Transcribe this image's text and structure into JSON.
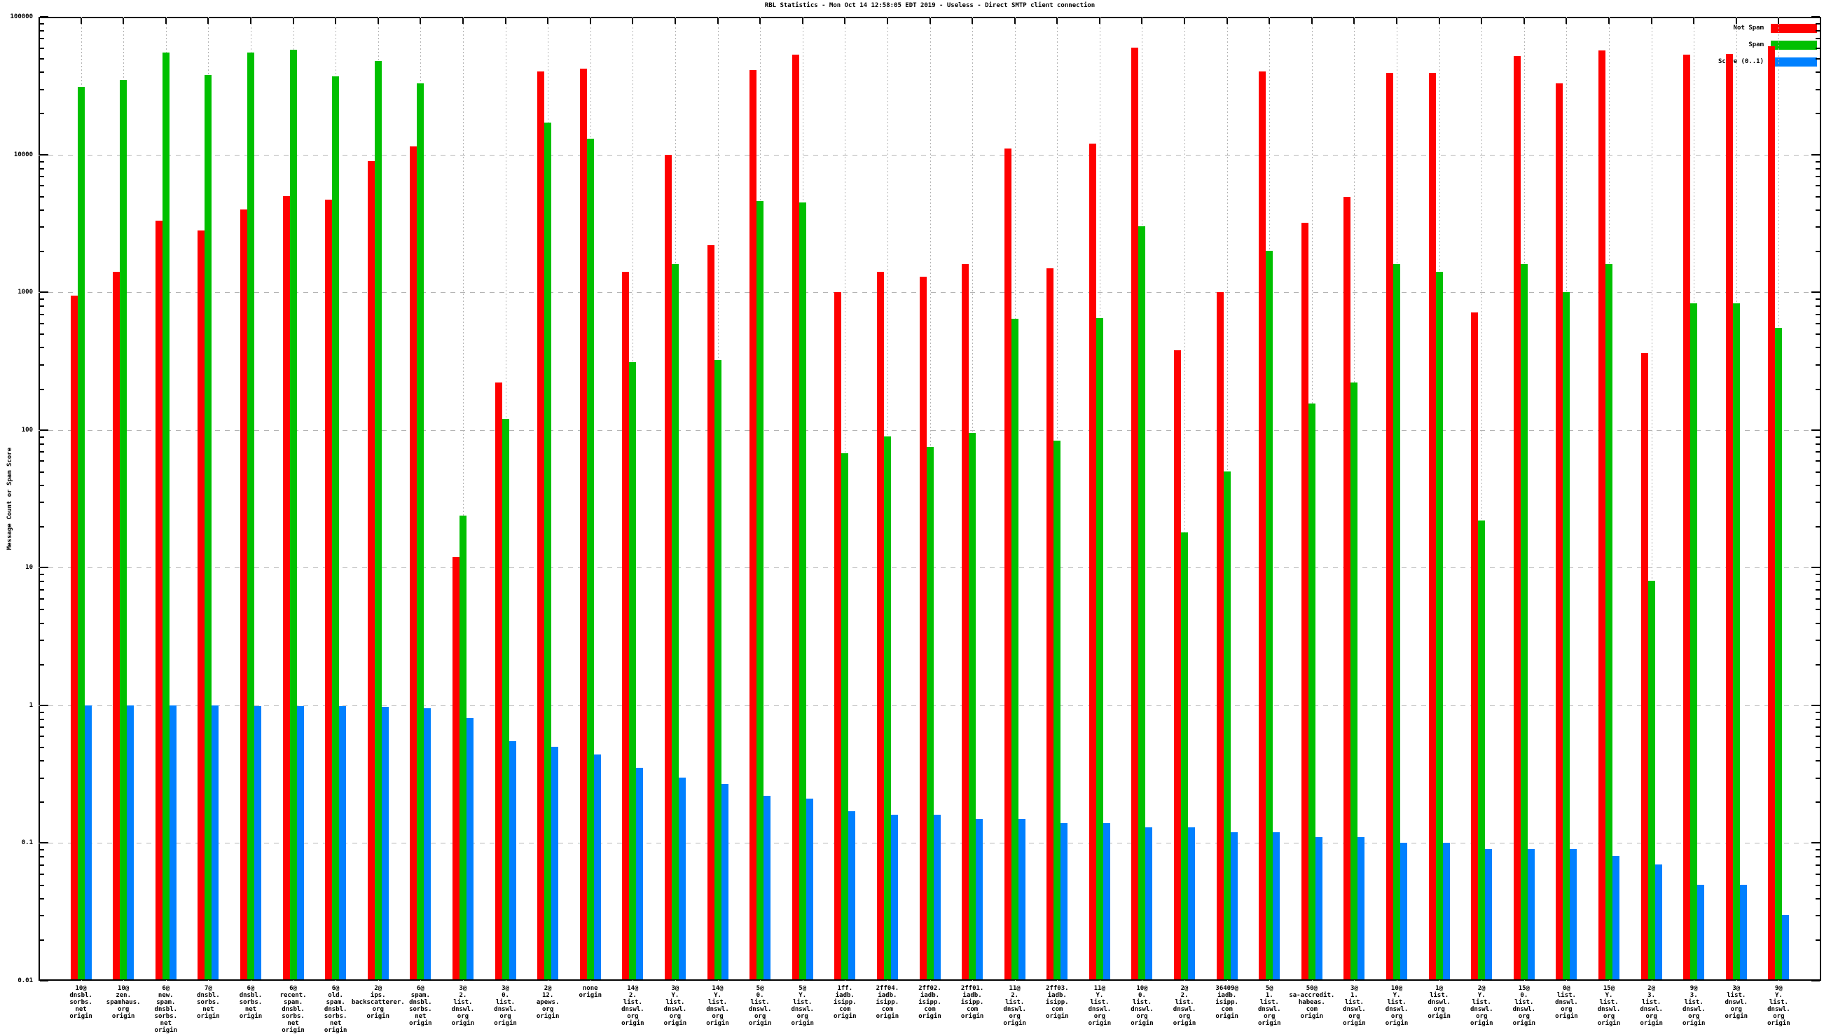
{
  "title": "RBL Statistics - Mon Oct 14 12:58:05 EDT 2019 - Useless - Direct SMTP client connection",
  "y_axis": {
    "label": "Message Count or Spam Score"
  },
  "chart_data": {
    "type": "bar",
    "y_scale": "log",
    "ylim": [
      0.01,
      100000
    ],
    "y_ticks": [
      "100000",
      "10000",
      "1000",
      "100",
      "10",
      "1",
      "0.1",
      "0.01"
    ],
    "grid": true,
    "legend_position": "top-right",
    "categories": [
      [
        "10@",
        "dnsbl.",
        "sorbs.",
        "net",
        "origin"
      ],
      [
        "10@",
        "zen.",
        "spamhaus.",
        "org",
        "origin"
      ],
      [
        "6@",
        "new.",
        "spam.",
        "dnsbl.",
        "sorbs.",
        "net",
        "origin"
      ],
      [
        "7@",
        "dnsbl.",
        "sorbs.",
        "net",
        "origin"
      ],
      [
        "6@",
        "dnsbl.",
        "sorbs.",
        "net",
        "origin"
      ],
      [
        "6@",
        "recent.",
        "spam.",
        "dnsbl.",
        "sorbs.",
        "net",
        "origin"
      ],
      [
        "6@",
        "old.",
        "spam.",
        "dnsbl.",
        "sorbs.",
        "net",
        "origin"
      ],
      [
        "2@",
        "ips.",
        "backscatterer.",
        "org",
        "origin"
      ],
      [
        "6@",
        "spam.",
        "dnsbl.",
        "sorbs.",
        "net",
        "origin"
      ],
      [
        "3@",
        "2.",
        "list.",
        "dnswl.",
        "org",
        "origin"
      ],
      [
        "3@",
        "0.",
        "list.",
        "dnswl.",
        "org",
        "origin"
      ],
      [
        "2@",
        "12.",
        "apews.",
        "org",
        "origin"
      ],
      [
        "none",
        "origin"
      ],
      [
        "14@",
        "2.",
        "list.",
        "dnswl.",
        "org",
        "origin"
      ],
      [
        "3@",
        "Y.",
        "list.",
        "dnswl.",
        "org",
        "origin"
      ],
      [
        "14@",
        "Y.",
        "list.",
        "dnswl.",
        "org",
        "origin"
      ],
      [
        "5@",
        "0.",
        "list.",
        "dnswl.",
        "org",
        "origin"
      ],
      [
        "5@",
        "Y.",
        "list.",
        "dnswl.",
        "org",
        "origin"
      ],
      [
        "1ff.",
        "iadb.",
        "isipp.",
        "com",
        "origin"
      ],
      [
        "2ff04.",
        "iadb.",
        "isipp.",
        "com",
        "origin"
      ],
      [
        "2ff02.",
        "iadb.",
        "isipp.",
        "com",
        "origin"
      ],
      [
        "2ff01.",
        "iadb.",
        "isipp.",
        "com",
        "origin"
      ],
      [
        "11@",
        "2.",
        "list.",
        "dnswl.",
        "org",
        "origin"
      ],
      [
        "2ff03.",
        "iadb.",
        "isipp.",
        "com",
        "origin"
      ],
      [
        "11@",
        "Y.",
        "list.",
        "dnswl.",
        "org",
        "origin"
      ],
      [
        "10@",
        "0.",
        "list.",
        "dnswl.",
        "org",
        "origin"
      ],
      [
        "2@",
        "2.",
        "list.",
        "dnswl.",
        "org",
        "origin"
      ],
      [
        "36409@",
        "iadb.",
        "isipp.",
        "com",
        "origin"
      ],
      [
        "5@",
        "1.",
        "list.",
        "dnswl.",
        "org",
        "origin"
      ],
      [
        "50@",
        "sa-accredit.",
        "habeas.",
        "com",
        "origin"
      ],
      [
        "3@",
        "1.",
        "list.",
        "dnswl.",
        "org",
        "origin"
      ],
      [
        "10@",
        "Y.",
        "list.",
        "dnswl.",
        "org",
        "origin"
      ],
      [
        "1@",
        "list.",
        "dnswl.",
        "org",
        "origin"
      ],
      [
        "2@",
        "Y.",
        "list.",
        "dnswl.",
        "org",
        "origin"
      ],
      [
        "15@",
        "0.",
        "list.",
        "dnswl.",
        "org",
        "origin"
      ],
      [
        "0@",
        "list.",
        "dnswl.",
        "org",
        "origin"
      ],
      [
        "15@",
        "Y.",
        "list.",
        "dnswl.",
        "org",
        "origin"
      ],
      [
        "2@",
        "3.",
        "list.",
        "dnswl.",
        "org",
        "origin"
      ],
      [
        "9@",
        "3.",
        "list.",
        "dnswl.",
        "org",
        "origin"
      ],
      [
        "3@",
        "list.",
        "dnswl.",
        "org",
        "origin"
      ],
      [
        "9@",
        "Y.",
        "list.",
        "dnswl.",
        "org",
        "origin"
      ]
    ],
    "series": [
      {
        "name": "Not Spam",
        "color": "#ff0000",
        "values": [
          950,
          1400,
          3300,
          2800,
          4000,
          5000,
          4700,
          9000,
          11500,
          12,
          220,
          40000,
          42000,
          1400,
          10000,
          2200,
          41000,
          53000,
          1000,
          1400,
          1300,
          1600,
          11000,
          1500,
          12000,
          60000,
          380,
          1000,
          40000,
          3200,
          4900,
          39000,
          39000,
          710,
          52000,
          33000,
          57000,
          360,
          53000,
          54000,
          61000
        ]
      },
      {
        "name": "Spam",
        "color": "#00c000",
        "values": [
          31000,
          35000,
          55000,
          38000,
          55000,
          58000,
          37000,
          48000,
          33000,
          24,
          120,
          17000,
          13000,
          310,
          1600,
          320,
          4600,
          4500,
          68,
          90,
          75,
          95,
          640,
          84,
          650,
          3000,
          18,
          50,
          2000,
          155,
          220,
          1600,
          1400,
          22,
          1600,
          1000,
          1600,
          8,
          830,
          830,
          550
        ]
      },
      {
        "name": "Score (0..1)",
        "color": "#0080ff",
        "values": [
          1.0,
          1.0,
          1.0,
          1.0,
          0.99,
          0.99,
          0.99,
          0.98,
          0.95,
          0.81,
          0.55,
          0.5,
          0.44,
          0.35,
          0.3,
          0.27,
          0.22,
          0.21,
          0.17,
          0.16,
          0.16,
          0.15,
          0.15,
          0.14,
          0.14,
          0.13,
          0.13,
          0.12,
          0.12,
          0.11,
          0.11,
          0.1,
          0.1,
          0.09,
          0.09,
          0.09,
          0.08,
          0.07,
          0.05,
          0.05,
          0.03
        ]
      }
    ]
  }
}
